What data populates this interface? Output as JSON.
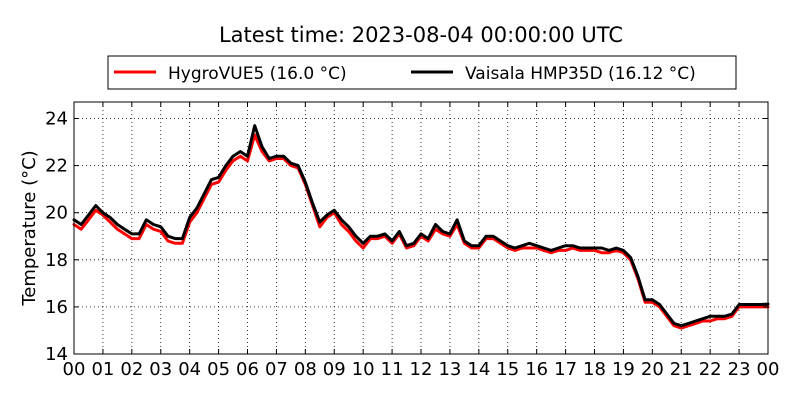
{
  "chart_data": {
    "type": "line",
    "title": "Latest time: 2023-08-04 00:00:00 UTC",
    "xlabel": "",
    "ylabel": "Temperature (°C)",
    "x_tick_labels": [
      "00",
      "01",
      "02",
      "03",
      "04",
      "05",
      "06",
      "07",
      "08",
      "09",
      "10",
      "11",
      "12",
      "13",
      "14",
      "15",
      "16",
      "17",
      "18",
      "19",
      "20",
      "21",
      "22",
      "23",
      "00"
    ],
    "xlim": [
      0,
      24
    ],
    "ylim": [
      14,
      24.7
    ],
    "y_ticks": [
      14,
      16,
      18,
      20,
      22,
      24
    ],
    "grid": true,
    "legend_position": "top-center",
    "series": [
      {
        "name": "HygroVUE5 (16.0 °C)",
        "color": "#ff0000",
        "x": [
          0,
          0.25,
          0.5,
          0.75,
          1,
          1.25,
          1.5,
          1.75,
          2,
          2.25,
          2.5,
          2.75,
          3,
          3.25,
          3.5,
          3.75,
          4,
          4.25,
          4.5,
          4.75,
          5,
          5.25,
          5.5,
          5.75,
          6,
          6.25,
          6.5,
          6.75,
          7,
          7.25,
          7.5,
          7.75,
          8,
          8.25,
          8.5,
          8.75,
          9,
          9.25,
          9.5,
          9.75,
          10,
          10.25,
          10.5,
          10.75,
          11,
          11.25,
          11.5,
          11.75,
          12,
          12.25,
          12.5,
          12.75,
          13,
          13.25,
          13.5,
          13.75,
          14,
          14.25,
          14.5,
          14.75,
          15,
          15.25,
          15.5,
          15.75,
          16,
          16.25,
          16.5,
          16.75,
          17,
          17.25,
          17.5,
          17.75,
          18,
          18.25,
          18.5,
          18.75,
          19,
          19.25,
          19.5,
          19.75,
          20,
          20.25,
          20.5,
          20.75,
          21,
          21.25,
          21.5,
          21.75,
          22,
          22.25,
          22.5,
          22.75,
          23,
          23.25,
          23.5,
          23.75,
          24
        ],
        "values": [
          19.5,
          19.3,
          19.7,
          20.1,
          19.9,
          19.6,
          19.3,
          19.1,
          18.9,
          18.9,
          19.5,
          19.3,
          19.2,
          18.8,
          18.7,
          18.7,
          19.6,
          20.0,
          20.6,
          21.2,
          21.3,
          21.8,
          22.2,
          22.4,
          22.2,
          23.3,
          22.6,
          22.2,
          22.3,
          22.3,
          22.0,
          21.9,
          21.2,
          20.3,
          19.4,
          19.8,
          20.0,
          19.5,
          19.2,
          18.8,
          18.5,
          18.9,
          18.9,
          19.0,
          18.7,
          19.1,
          18.5,
          18.6,
          19.0,
          18.8,
          19.3,
          19.1,
          19.0,
          19.5,
          18.7,
          18.5,
          18.5,
          18.9,
          18.9,
          18.7,
          18.5,
          18.4,
          18.5,
          18.5,
          18.5,
          18.4,
          18.3,
          18.4,
          18.4,
          18.5,
          18.4,
          18.4,
          18.4,
          18.3,
          18.3,
          18.4,
          18.3,
          18.0,
          17.2,
          16.2,
          16.2,
          16.0,
          15.6,
          15.2,
          15.1,
          15.2,
          15.3,
          15.4,
          15.4,
          15.5,
          15.5,
          15.6,
          16.0,
          16.0,
          16.0,
          16.0,
          16.0
        ],
        "current": 16.0
      },
      {
        "name": "Vaisala HMP35D (16.12 °C)",
        "color": "#000000",
        "x": [
          0,
          0.25,
          0.5,
          0.75,
          1,
          1.25,
          1.5,
          1.75,
          2,
          2.25,
          2.5,
          2.75,
          3,
          3.25,
          3.5,
          3.75,
          4,
          4.25,
          4.5,
          4.75,
          5,
          5.25,
          5.5,
          5.75,
          6,
          6.25,
          6.5,
          6.75,
          7,
          7.25,
          7.5,
          7.75,
          8,
          8.25,
          8.5,
          8.75,
          9,
          9.25,
          9.5,
          9.75,
          10,
          10.25,
          10.5,
          10.75,
          11,
          11.25,
          11.5,
          11.75,
          12,
          12.25,
          12.5,
          12.75,
          13,
          13.25,
          13.5,
          13.75,
          14,
          14.25,
          14.5,
          14.75,
          15,
          15.25,
          15.5,
          15.75,
          16,
          16.25,
          16.5,
          16.75,
          17,
          17.25,
          17.5,
          17.75,
          18,
          18.25,
          18.5,
          18.75,
          19,
          19.25,
          19.5,
          19.75,
          20,
          20.25,
          20.5,
          20.75,
          21,
          21.25,
          21.5,
          21.75,
          22,
          22.25,
          22.5,
          22.75,
          23,
          23.25,
          23.5,
          23.75,
          24
        ],
        "values": [
          19.7,
          19.5,
          19.9,
          20.3,
          20.0,
          19.8,
          19.5,
          19.3,
          19.1,
          19.1,
          19.7,
          19.5,
          19.4,
          19.0,
          18.9,
          18.9,
          19.8,
          20.2,
          20.8,
          21.4,
          21.5,
          22.0,
          22.4,
          22.6,
          22.4,
          23.7,
          22.8,
          22.3,
          22.4,
          22.4,
          22.1,
          22.0,
          21.3,
          20.4,
          19.6,
          19.9,
          20.1,
          19.7,
          19.4,
          19.0,
          18.7,
          19.0,
          19.0,
          19.1,
          18.8,
          19.2,
          18.6,
          18.7,
          19.1,
          18.9,
          19.5,
          19.2,
          19.1,
          19.7,
          18.8,
          18.6,
          18.6,
          19.0,
          19.0,
          18.8,
          18.6,
          18.5,
          18.6,
          18.7,
          18.6,
          18.5,
          18.4,
          18.5,
          18.6,
          18.6,
          18.5,
          18.5,
          18.5,
          18.5,
          18.4,
          18.5,
          18.4,
          18.1,
          17.3,
          16.3,
          16.3,
          16.1,
          15.7,
          15.3,
          15.2,
          15.3,
          15.4,
          15.5,
          15.6,
          15.6,
          15.6,
          15.7,
          16.1,
          16.1,
          16.1,
          16.1,
          16.12
        ],
        "current": 16.12
      }
    ]
  }
}
